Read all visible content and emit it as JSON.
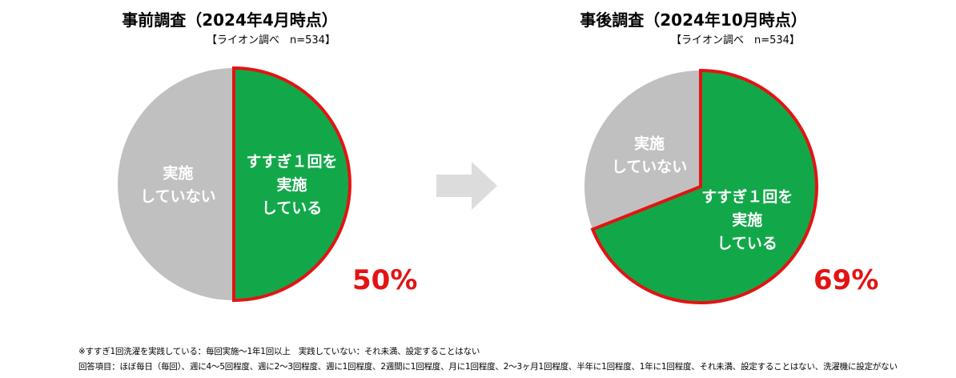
{
  "colors": {
    "implemented": "#12a84a",
    "not_implemented": "#c0c0c0",
    "highlight_border": "#e31313",
    "arrow": "#dcdcdc",
    "label_text": "#ffffff",
    "percent_text": "#e31313"
  },
  "icons": {
    "arrow": "right-arrow-icon"
  },
  "chart_data": [
    {
      "type": "pie",
      "title": "事前調査（2024年4月時点）",
      "source": "【ライオン調べ　n=534】",
      "slices": [
        {
          "label": [
            "すすぎ１回を",
            "実施",
            "している"
          ],
          "value": 50,
          "color": "#12a84a",
          "highlighted": true
        },
        {
          "label": [
            "実施",
            "していない"
          ],
          "value": 50,
          "color": "#c0c0c0",
          "highlighted": false
        }
      ],
      "highlight_label": "50%"
    },
    {
      "type": "pie",
      "title": "事後調査（2024年10月時点）",
      "source": "【ライオン調べ　n=534】",
      "slices": [
        {
          "label": [
            "すすぎ１回を",
            "実施",
            "している"
          ],
          "value": 69,
          "color": "#12a84a",
          "highlighted": true
        },
        {
          "label": [
            "実施",
            "していない"
          ],
          "value": 31,
          "color": "#c0c0c0",
          "highlighted": false
        }
      ],
      "highlight_label": "69%"
    }
  ],
  "footnotes": [
    "※すすぎ1回洗濯を実践している：毎回実施～1年1回以上　実践していない：それ未満、設定することはない",
    "回答項目：ほぼ毎日（毎回）、週に4～5回程度、週に2～3回程度、週に1回程度、2週間に1回程度、月に1回程度、2～3ヶ月1回程度、半年に1回程度、1年に1回程度、それ未満、設定することはない、洗濯機に設定がない"
  ]
}
